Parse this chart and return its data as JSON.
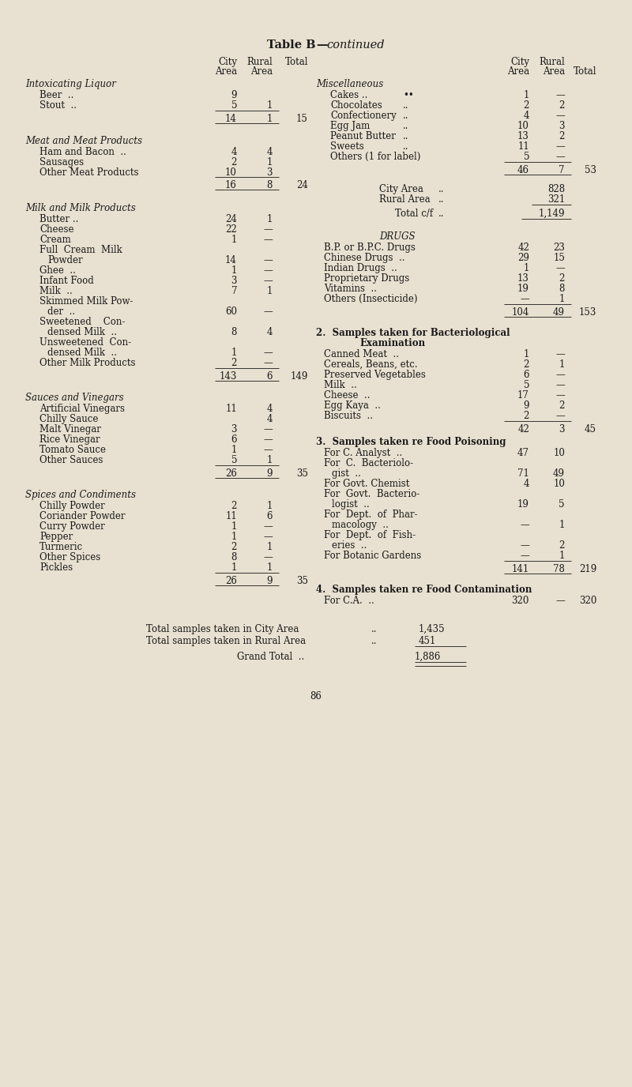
{
  "bg_color": "#e8e0d0",
  "title_bold": "Table B",
  "title_italic": "—continued",
  "page_number": "86",
  "font_size": 8.5,
  "title_font_size": 10.5,
  "figsize": [
    8.0,
    13.76
  ],
  "dpi": 100
}
